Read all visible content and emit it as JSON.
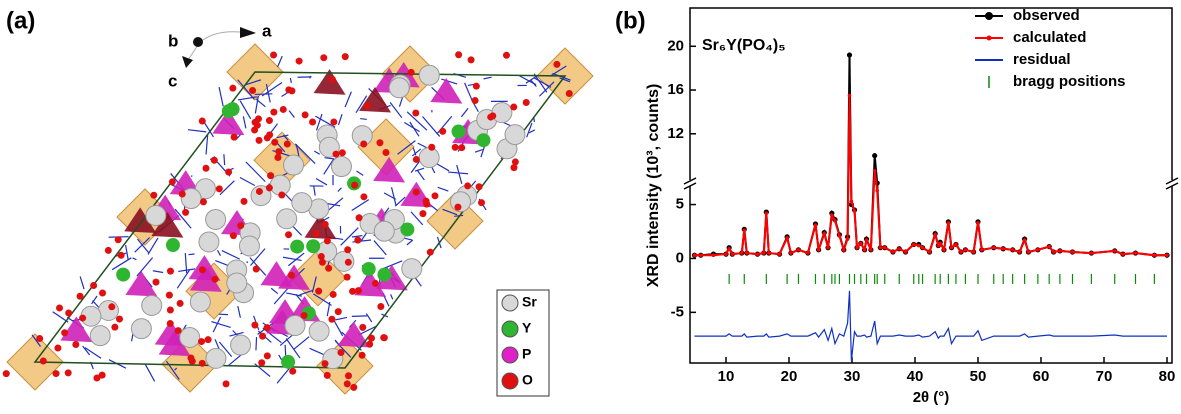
{
  "panel_labels": [
    "(a)",
    "(b)"
  ],
  "structure": {
    "axes": [
      "b",
      "a",
      "c"
    ],
    "legend": [
      {
        "name": "Sr",
        "color": "#d8d8d8"
      },
      {
        "name": "Y",
        "color": "#2fb52f"
      },
      {
        "name": "P",
        "color": "#e020c8"
      },
      {
        "name": "O",
        "color": "#e01010"
      }
    ]
  },
  "chart_data": {
    "type": "line",
    "title": "Sr₆Y(PO₄)₅",
    "xlabel": "2θ (°)",
    "ylabel": "XRD intensity (10³, counts)",
    "xlim": [
      5,
      80
    ],
    "xticks": [
      10,
      20,
      30,
      40,
      50,
      60,
      70,
      80
    ],
    "ylim": [
      -9.7,
      23.5
    ],
    "y_break": [
      7,
      7.5
    ],
    "yticks": [
      -5,
      0,
      5,
      12,
      16,
      20
    ],
    "legend": "upper right",
    "x": [
      5,
      6,
      8,
      10,
      10.5,
      11,
      12.5,
      12.9,
      13.3,
      15,
      16,
      16.4,
      16.8,
      18.5,
      19.7,
      20.3,
      21.5,
      23,
      24.2,
      24.7,
      25.6,
      26.2,
      26.8,
      27.3,
      28,
      28.7,
      29.3,
      29.6,
      29.9,
      30.4,
      30.8,
      31.4,
      32,
      32.3,
      33,
      33.6,
      34,
      34.5,
      35.2,
      36.5,
      37.5,
      38.5,
      39.8,
      40.6,
      41.2,
      42.3,
      43.2,
      43.7,
      44,
      44.6,
      45.3,
      45.8,
      46.5,
      47.3,
      48,
      49.3,
      50,
      50.6,
      52.5,
      54,
      55.5,
      56.6,
      57.4,
      58,
      59.5,
      61.3,
      62,
      63,
      65,
      68,
      71.7,
      73,
      75,
      78,
      80
    ],
    "series": [
      {
        "name": "observed",
        "color": "#000000",
        "markers": true,
        "values": [
          0.3,
          0.3,
          0.4,
          0.4,
          1.0,
          0.4,
          0.5,
          2.7,
          0.5,
          0.4,
          0.5,
          4.3,
          0.5,
          0.4,
          2.0,
          0.5,
          0.8,
          0.5,
          3.2,
          0.8,
          2.4,
          1.0,
          4.2,
          3.6,
          2.2,
          0.8,
          2.0,
          19.2,
          5.0,
          4.5,
          1.0,
          1.4,
          0.8,
          1.8,
          0.8,
          10.0,
          7.0,
          1.0,
          1.0,
          0.6,
          0.9,
          0.6,
          1.3,
          1.3,
          1.0,
          0.6,
          2.3,
          1.2,
          1.5,
          0.8,
          3.4,
          1.0,
          1.3,
          0.6,
          0.8,
          0.6,
          3.4,
          0.8,
          1.0,
          0.9,
          0.8,
          0.6,
          1.8,
          0.6,
          0.8,
          1.1,
          0.6,
          0.7,
          0.6,
          0.5,
          0.7,
          0.4,
          0.5,
          0.3,
          0.3
        ]
      },
      {
        "name": "calculated",
        "color": "#ff0000",
        "markers": true,
        "values": [
          0.3,
          0.3,
          0.3,
          0.4,
          0.9,
          0.4,
          0.5,
          2.6,
          0.5,
          0.4,
          0.5,
          4.2,
          0.5,
          0.4,
          1.9,
          0.5,
          0.8,
          0.5,
          3.1,
          0.8,
          2.3,
          1.0,
          4.0,
          3.5,
          2.1,
          0.8,
          1.8,
          15.5,
          5.3,
          4.4,
          1.0,
          1.4,
          0.8,
          1.7,
          0.8,
          8.6,
          6.3,
          1.0,
          1.0,
          0.6,
          0.9,
          0.6,
          1.3,
          1.2,
          1.0,
          0.6,
          2.2,
          1.2,
          1.4,
          0.8,
          3.3,
          1.0,
          1.3,
          0.6,
          0.8,
          0.6,
          3.3,
          0.8,
          1.0,
          0.9,
          0.8,
          0.6,
          1.7,
          0.6,
          0.8,
          1.1,
          0.6,
          0.7,
          0.6,
          0.5,
          0.7,
          0.4,
          0.5,
          0.3,
          0.3
        ]
      },
      {
        "name": "residual",
        "color": "#1030c0",
        "markers": false,
        "values": [
          -7.2,
          -7.2,
          -7.2,
          -7.2,
          -7.0,
          -7.2,
          -7.2,
          -7.0,
          -7.3,
          -7.2,
          -7.2,
          -7.0,
          -7.3,
          -7.2,
          -7.0,
          -7.2,
          -7.2,
          -7.2,
          -6.9,
          -7.3,
          -6.6,
          -7.6,
          -6.5,
          -7.9,
          -7.0,
          -7.2,
          -6.0,
          -3.0,
          -9.5,
          -6.8,
          -7.2,
          -7.2,
          -7.1,
          -7.3,
          -7.2,
          -5.8,
          -7.9,
          -7.2,
          -7.2,
          -7.2,
          -7.1,
          -7.2,
          -7.2,
          -7.1,
          -7.3,
          -7.2,
          -6.8,
          -7.4,
          -7.2,
          -7.2,
          -6.5,
          -7.9,
          -7.2,
          -7.2,
          -7.2,
          -7.2,
          -6.7,
          -7.6,
          -7.2,
          -7.2,
          -7.2,
          -7.2,
          -7.0,
          -7.3,
          -7.2,
          -7.1,
          -7.2,
          -7.2,
          -7.2,
          -7.2,
          -7.1,
          -7.2,
          -7.2,
          -7.2,
          -7.2
        ]
      },
      {
        "name": "bragg positions",
        "color": "#0a8a0a",
        "ticks": true,
        "x": [
          10.5,
          12.9,
          16.4,
          19.7,
          21.5,
          24.2,
          25.6,
          26.8,
          27.3,
          28,
          29.6,
          30.4,
          31.4,
          32.3,
          33.6,
          34,
          35.2,
          37.5,
          39.8,
          40.6,
          41.2,
          43.2,
          44,
          45.3,
          46.5,
          48,
          50,
          52.5,
          54,
          55.5,
          57.4,
          59.5,
          61.3,
          63,
          65,
          68,
          71.7,
          75,
          78
        ],
        "values": [
          -1.9,
          -1.9,
          -1.9,
          -1.9,
          -1.9,
          -1.9,
          -1.9,
          -1.9,
          -1.9,
          -1.9,
          -1.9,
          -1.9,
          -1.9,
          -1.9,
          -1.9,
          -1.9,
          -1.9,
          -1.9,
          -1.9,
          -1.9,
          -1.9,
          -1.9,
          -1.9,
          -1.9,
          -1.9,
          -1.9,
          -1.9,
          -1.9,
          -1.9,
          -1.9,
          -1.9,
          -1.9,
          -1.9,
          -1.9,
          -1.9,
          -1.9,
          -1.9,
          -1.9,
          -1.9
        ]
      }
    ]
  }
}
